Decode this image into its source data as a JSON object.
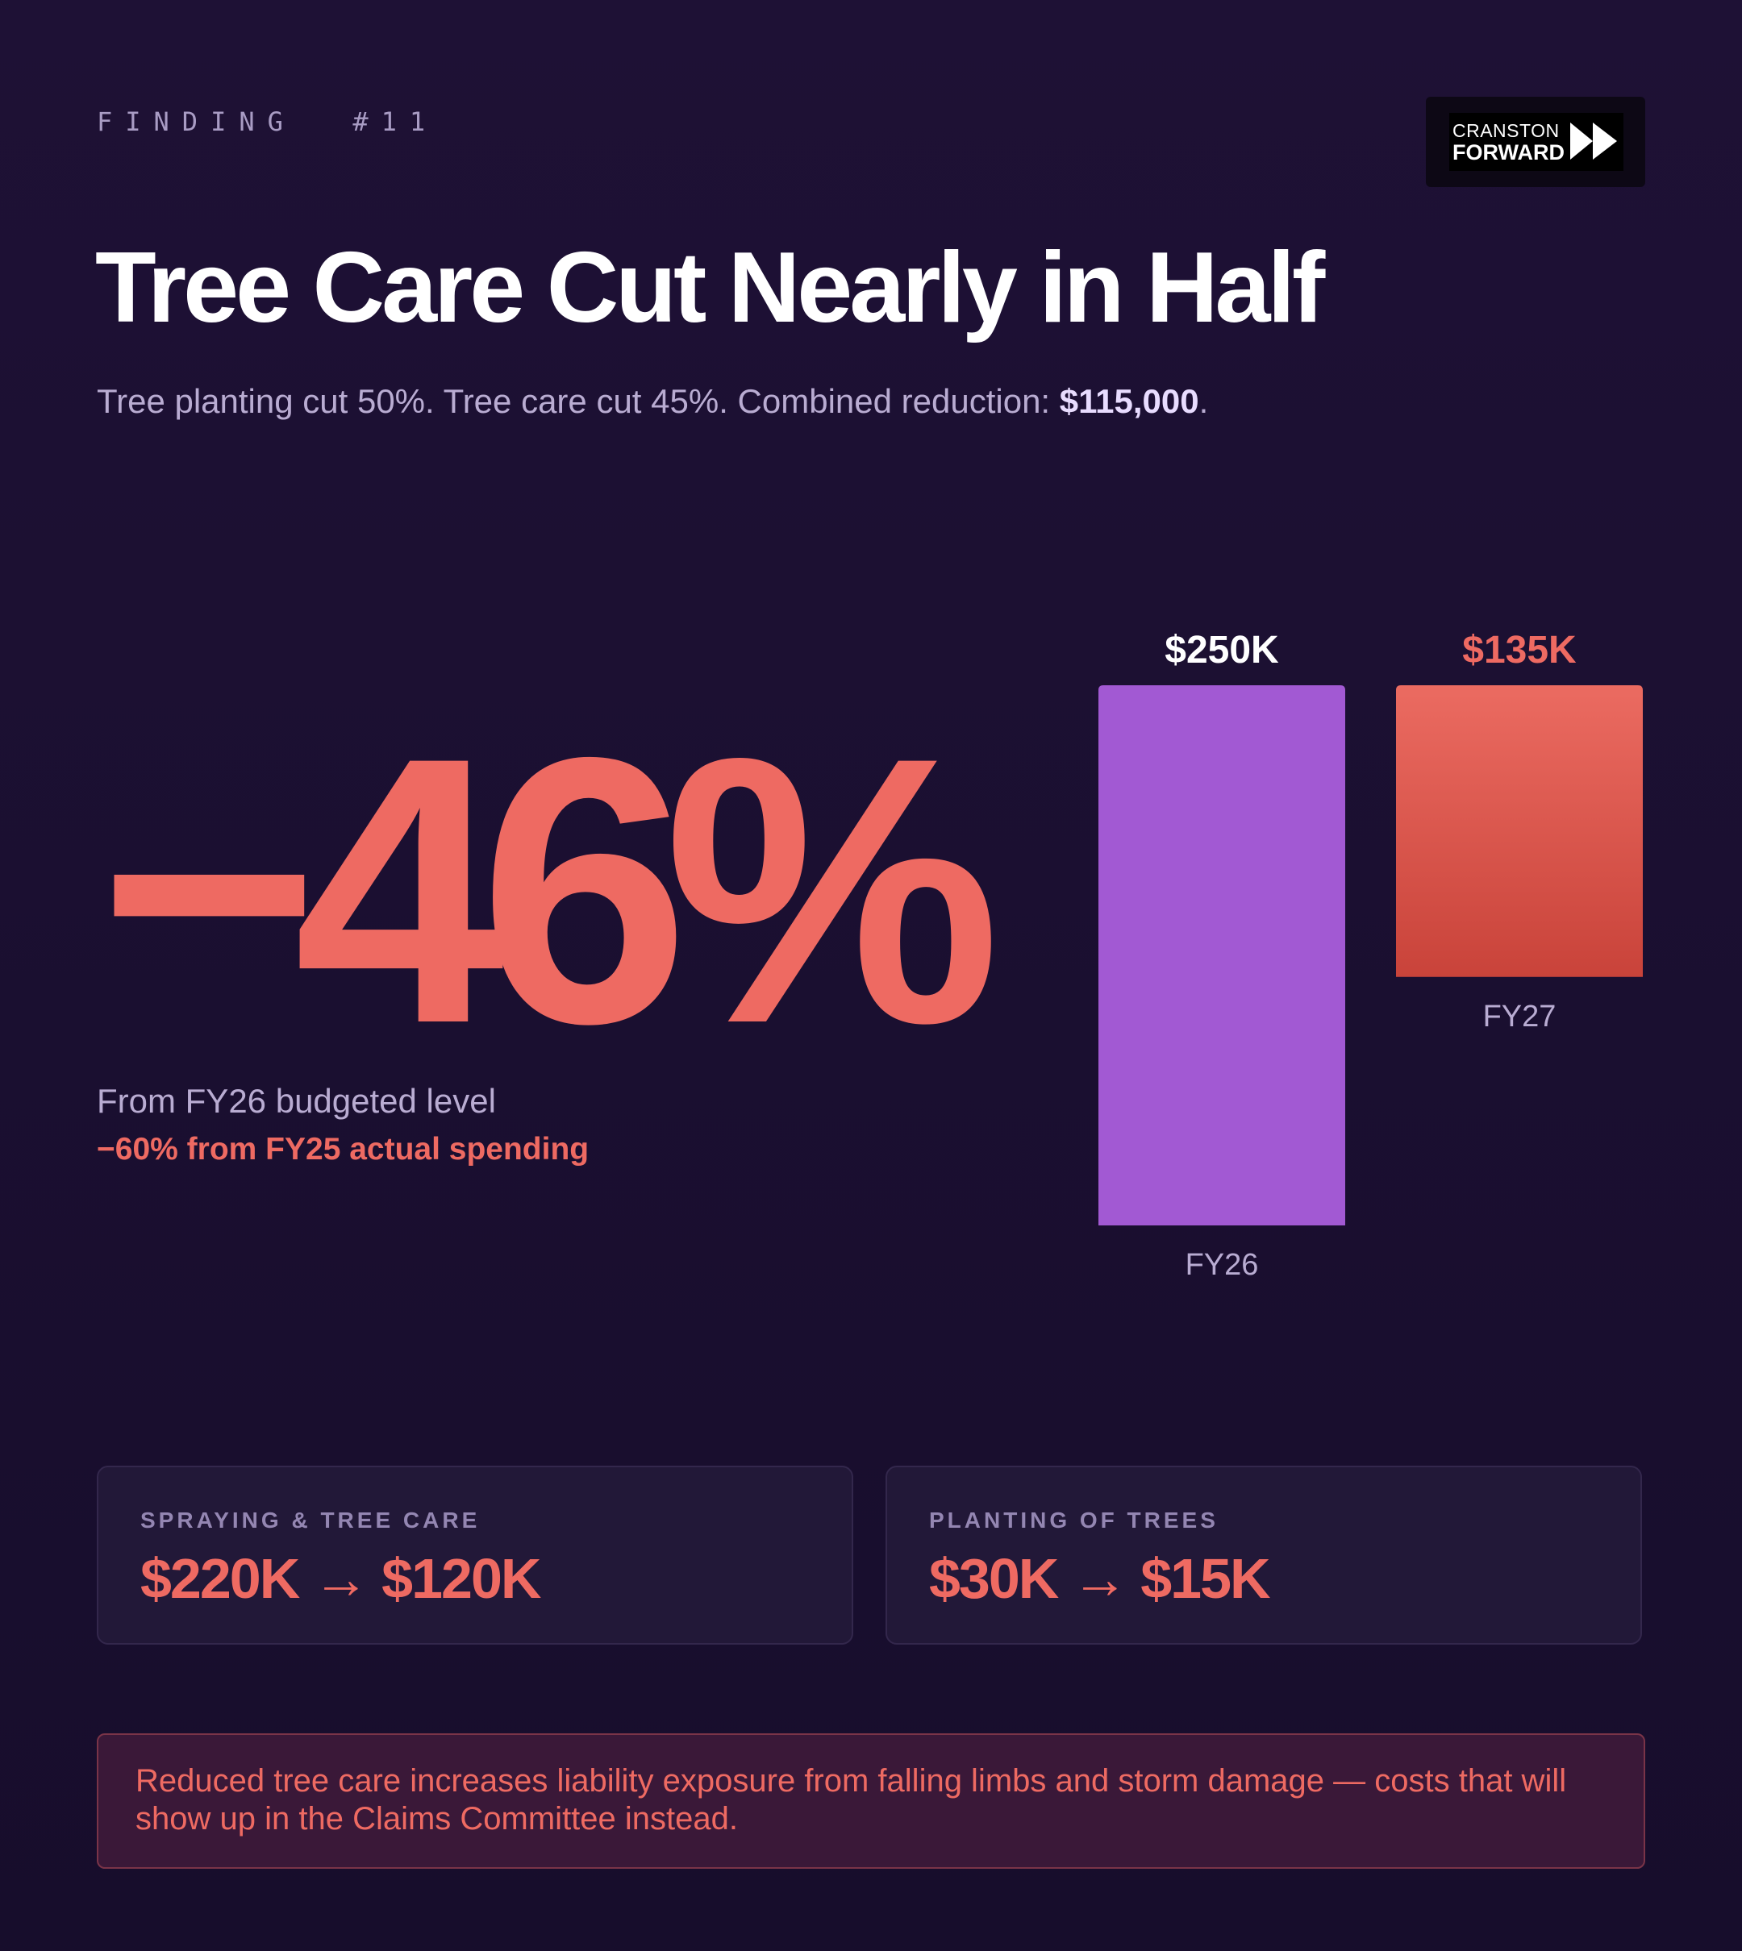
{
  "header": {
    "eyebrow": "FINDING  #11",
    "logo_line1": "CRANSTON",
    "logo_line2": "FORWARD"
  },
  "title": "Tree Care Cut Nearly in Half",
  "subtitle": {
    "text": "Tree planting cut 50%. Tree care cut 45%. Combined reduction: ",
    "highlight": "$115,000",
    "end": "."
  },
  "stat": {
    "value": "−46%",
    "note": "From FY26 budgeted level",
    "note2": "−60% from FY25 actual spending"
  },
  "chart_data": {
    "type": "bar",
    "categories": [
      "FY26",
      "FY27"
    ],
    "values": [
      250000,
      135000
    ],
    "value_labels": [
      "$250K",
      "$135K"
    ],
    "colors": [
      "#a259d3",
      "#e5655a"
    ],
    "label_colors": [
      "#ffffff",
      "#ee6a62"
    ],
    "ylim": [
      0,
      250000
    ]
  },
  "cards": [
    {
      "label": "SPRAYING & TREE CARE",
      "value": "$220K → $120K"
    },
    {
      "label": "PLANTING OF TREES",
      "value": "$30K → $15K"
    }
  ],
  "warning": "Reduced tree care increases liability exposure from falling limbs and storm damage — costs that will show up in the Claims Committee instead.",
  "colors": {
    "background": "#1c1032",
    "accent": "#ee6a62",
    "purple": "#a259d3",
    "muted": "#b9acd2"
  }
}
